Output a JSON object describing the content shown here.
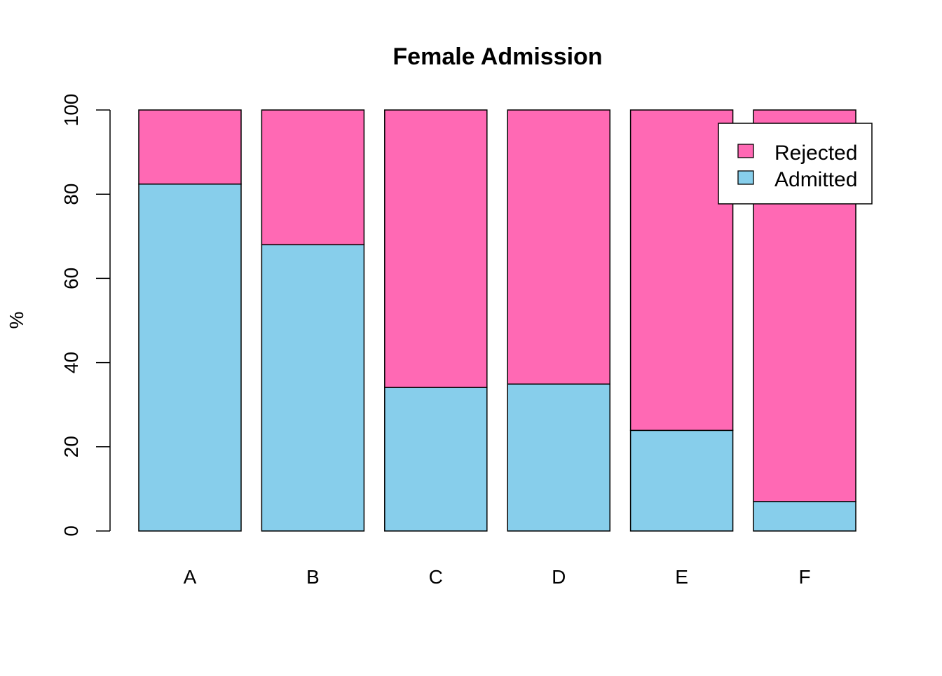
{
  "chart_data": {
    "type": "bar",
    "stacked": true,
    "title": "Female Admission",
    "xlabel": "",
    "ylabel": "%",
    "ylim": [
      0,
      100
    ],
    "yticks": [
      "0",
      "20",
      "40",
      "60",
      "80",
      "100"
    ],
    "categories": [
      "A",
      "B",
      "C",
      "D",
      "E",
      "F"
    ],
    "series": [
      {
        "name": "Admitted",
        "color": "#87CEEB",
        "values": [
          82.4,
          68.0,
          34.1,
          34.9,
          23.9,
          7.0
        ]
      },
      {
        "name": "Rejected",
        "color": "#FF69B4",
        "values": [
          17.6,
          32.0,
          65.9,
          65.1,
          76.1,
          93.0
        ]
      }
    ],
    "legend": {
      "position": "top-right",
      "entries": [
        "Rejected",
        "Admitted"
      ]
    },
    "grid": false
  }
}
